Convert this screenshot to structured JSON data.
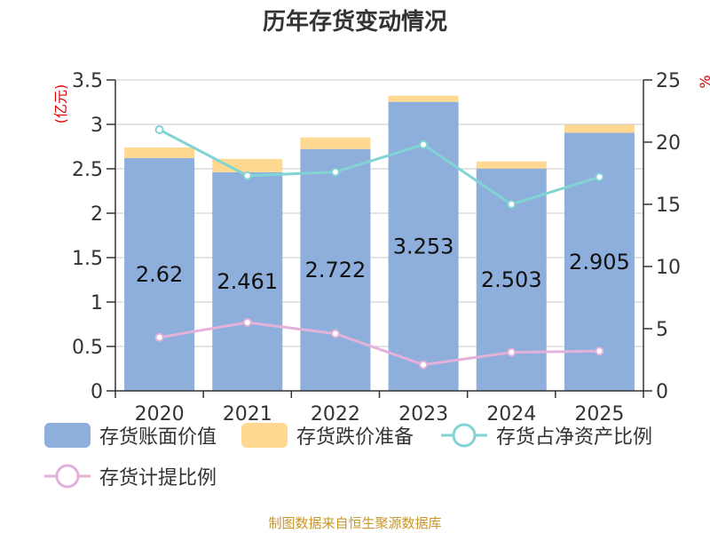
{
  "title": "历年存货变动情况",
  "source_note": "制图数据来自恒生聚源数据库",
  "colors": {
    "bar_main": "#8eaedc",
    "bar_reserve": "#ffd992",
    "line_ratio": "#82d3d4",
    "line_provision": "#e4b1d9",
    "axis_unit": "#e00000",
    "grid": "#c8c8c8"
  },
  "legend": {
    "book_value": "存货账面价值",
    "impairment_reserve": "存货跌价准备",
    "net_asset_ratio": "存货占净资产比例",
    "provision_ratio": "存货计提比例"
  },
  "chart_data": {
    "type": "bar",
    "title": "历年存货变动情况",
    "categories": [
      "2020",
      "2021",
      "2022",
      "2023",
      "2024",
      "2025"
    ],
    "ylabel_left": "(亿元)",
    "ylabel_right": "%",
    "ylim_left": [
      0,
      3.5
    ],
    "ylim_right": [
      0,
      25
    ],
    "yticks_left": [
      "0",
      "0.5",
      "1",
      "1.5",
      "2",
      "2.5",
      "3",
      "3.5"
    ],
    "yticks_right": [
      "0",
      "5",
      "10",
      "15",
      "20",
      "25"
    ],
    "grid": true,
    "legend_position": "bottom",
    "series": [
      {
        "name": "存货账面价值",
        "kind": "stacked-bar",
        "values": [
          2.62,
          2.461,
          2.722,
          3.253,
          2.503,
          2.905
        ],
        "labels": [
          "2.62",
          "2.461",
          "2.722",
          "3.253",
          "2.503",
          "2.905"
        ]
      },
      {
        "name": "存货跌价准备",
        "kind": "stacked-bar",
        "values": [
          0.12,
          0.15,
          0.13,
          0.07,
          0.08,
          0.09
        ]
      },
      {
        "name": "存货占净资产比例",
        "kind": "line",
        "axis": "right",
        "values": [
          21.0,
          17.3,
          17.6,
          19.8,
          15.0,
          17.2
        ]
      },
      {
        "name": "存货计提比例",
        "kind": "line",
        "axis": "right",
        "values": [
          4.3,
          5.5,
          4.6,
          2.1,
          3.1,
          3.2
        ]
      }
    ]
  }
}
